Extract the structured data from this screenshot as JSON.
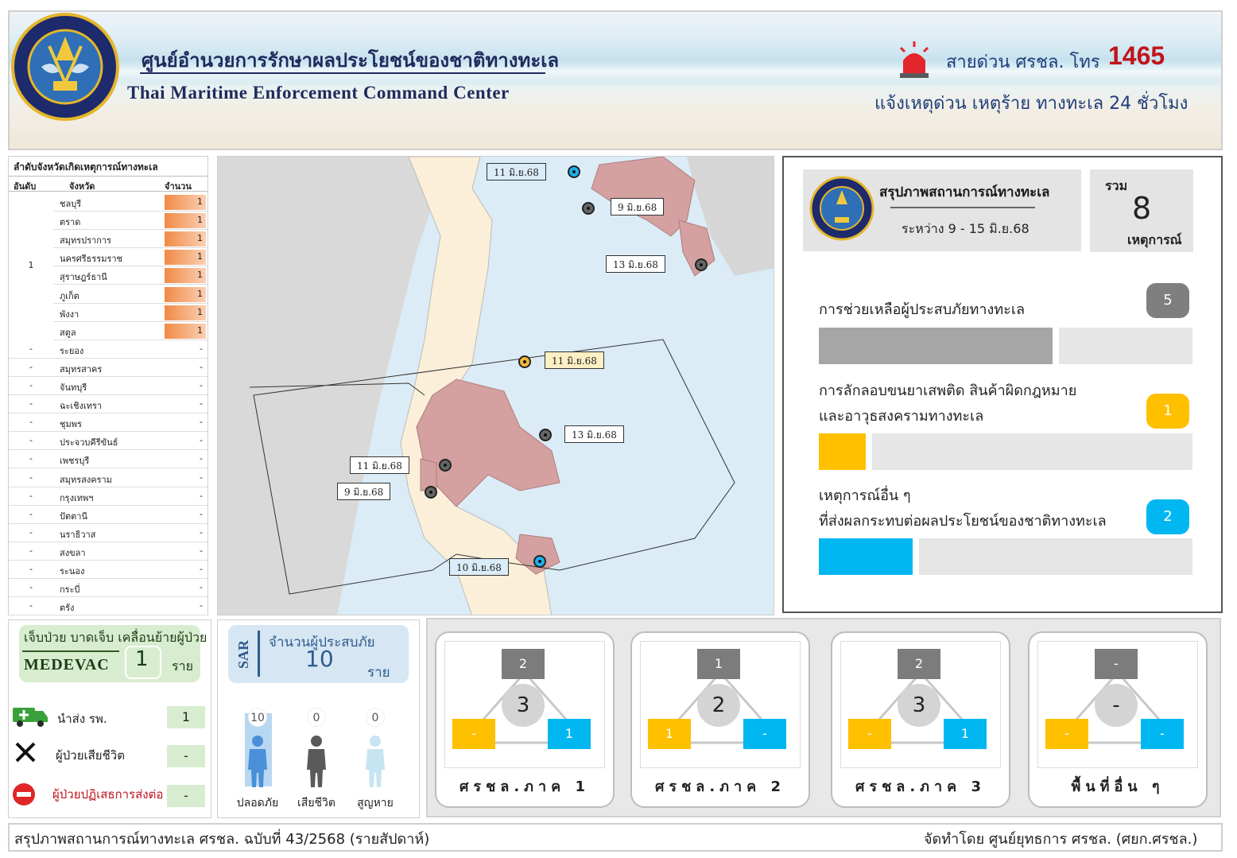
{
  "header": {
    "title_th": "ศูนย์อำนวยการรักษาผลประโยชน์ของชาติทางทะเล",
    "title_en": "Thai Maritime Enforcement Command Center",
    "hotline_label": "สายด่วน ศรชล. โทร",
    "hotline_number": "1465",
    "hotline_sub": "แจ้งเหตุด่วน เหตุร้าย ทางทะเล 24 ชั่วโมง"
  },
  "ranking": {
    "title": "ลำดับจังหวัดเกิดเหตุการณ์ทางทะเล",
    "col_rank": "อันดับ",
    "col_province": "จังหวัด",
    "col_count": "จำนวน",
    "top_rank": "1",
    "rows": [
      {
        "rank": "1",
        "province": "ชลบุรี",
        "count": "1"
      },
      {
        "rank": "1",
        "province": "ตราด",
        "count": "1"
      },
      {
        "rank": "1",
        "province": "สมุทรปราการ",
        "count": "1"
      },
      {
        "rank": "1",
        "province": "นครศรีธรรมราช",
        "count": "1"
      },
      {
        "rank": "1",
        "province": "สุราษฎร์ธานี",
        "count": "1"
      },
      {
        "rank": "1",
        "province": "ภูเก็ต",
        "count": "1"
      },
      {
        "rank": "1",
        "province": "พังงา",
        "count": "1"
      },
      {
        "rank": "1",
        "province": "สตูล",
        "count": "1"
      },
      {
        "rank": "-",
        "province": "ระยอง",
        "count": "-"
      },
      {
        "rank": "-",
        "province": "สมุทรสาคร",
        "count": "-"
      },
      {
        "rank": "-",
        "province": "จันทบุรี",
        "count": "-"
      },
      {
        "rank": "-",
        "province": "ฉะเชิงเทรา",
        "count": "-"
      },
      {
        "rank": "-",
        "province": "ชุมพร",
        "count": "-"
      },
      {
        "rank": "-",
        "province": "ประจวบคีรีขันธ์",
        "count": "-"
      },
      {
        "rank": "-",
        "province": "เพชรบุรี",
        "count": "-"
      },
      {
        "rank": "-",
        "province": "สมุทรสงคราม",
        "count": "-"
      },
      {
        "rank": "-",
        "province": "กรุงเทพฯ",
        "count": "-"
      },
      {
        "rank": "-",
        "province": "ปัตตานี",
        "count": "-"
      },
      {
        "rank": "-",
        "province": "นราธิวาส",
        "count": "-"
      },
      {
        "rank": "-",
        "province": "สงขลา",
        "count": "-"
      },
      {
        "rank": "-",
        "province": "ระนอง",
        "count": "-"
      },
      {
        "rank": "-",
        "province": "กระบี่",
        "count": "-"
      },
      {
        "rank": "-",
        "province": "ตรัง",
        "count": "-"
      }
    ]
  },
  "map": {
    "markers": [
      {
        "label": "11 มิ.ย.68",
        "type": "blue"
      },
      {
        "label": "9 มิ.ย.68",
        "type": "gray"
      },
      {
        "label": "13 มิ.ย.68",
        "type": "gray"
      },
      {
        "label": "11 มิ.ย.68",
        "type": "yellow"
      },
      {
        "label": "13 มิ.ย.68",
        "type": "gray"
      },
      {
        "label": "11 มิ.ย.68",
        "type": "gray"
      },
      {
        "label": "9 มิ.ย.68",
        "type": "gray"
      },
      {
        "label": "10 มิ.ย.68",
        "type": "blue"
      }
    ]
  },
  "summary": {
    "title": "สรุปภาพสถานการณ์ทางทะเล",
    "range": "ระหว่าง  9 - 15 มิ.ย.68",
    "total_label": "รวม",
    "total_value": "8",
    "total_unit": "เหตุการณ์",
    "categories": [
      {
        "line1": "การช่วยเหลือผู้ประสบภัยทางทะเล",
        "line2": "",
        "value": "5",
        "fraction": 0.625,
        "color": "#a6a6a6",
        "badge_color": "#7f7f7f"
      },
      {
        "line1": "การลักลอบขนยาเสพติด สินค้าผิดกฎหมาย",
        "line2": "และอาวุธสงครามทางทะเล",
        "value": "1",
        "fraction": 0.125,
        "color": "#ffc000",
        "badge_color": "#ffc000"
      },
      {
        "line1": "เหตุการณ์อื่น ๆ",
        "line2": "ที่ส่งผลกระทบต่อผลประโยชน์ของชาติทางทะเล",
        "value": "2",
        "fraction": 0.25,
        "color": "#00b7f1",
        "badge_color": "#00b7f1"
      }
    ]
  },
  "medevac": {
    "top": "เจ็บป่วย บาดเจ็บ เคลื่อนย้ายผู้ป่วย",
    "word": "MEDEVAC",
    "value": "1",
    "unit": "ราย",
    "rows": [
      {
        "label": "นำส่ง รพ.",
        "value": "1",
        "icon": "ambulance-icon"
      },
      {
        "label": "ผู้ป่วยเสียชีวิต",
        "value": "-",
        "icon": "x-icon"
      },
      {
        "label": "ผู้ป่วยปฏิเสธการส่งต่อ",
        "value": "-",
        "icon": "no-entry-icon"
      }
    ]
  },
  "sar": {
    "badge": "SAR",
    "label": "จำนวนผู้ประสบภัย",
    "value": "10",
    "unit": "ราย",
    "people": [
      {
        "label": "ปลอดภัย",
        "value": "10",
        "color": "#4a90d9"
      },
      {
        "label": "เสียชีวิต",
        "value": "0",
        "color": "#5a5a5a"
      },
      {
        "label": "สูญหาย",
        "value": "0",
        "color": "#c7e4f2"
      }
    ]
  },
  "regions": [
    {
      "name": "ศรชล.ภาค 1",
      "gray": "2",
      "total": "3",
      "yellow": "-",
      "blue": "1"
    },
    {
      "name": "ศรชล.ภาค 2",
      "gray": "1",
      "total": "2",
      "yellow": "1",
      "blue": "-"
    },
    {
      "name": "ศรชล.ภาค 3",
      "gray": "2",
      "total": "3",
      "yellow": "-",
      "blue": "1"
    },
    {
      "name": "พื้นที่อื่น ๆ",
      "gray": "-",
      "total": "-",
      "yellow": "-",
      "blue": "-"
    }
  ],
  "footer": {
    "left": "สรุปภาพสถานการณ์ทางทะเล ศรชล. ฉบับที่ 43/2568 (รายสัปดาห์)",
    "right": "จัดทำโดย ศูนย์ยุทธการ ศรชล. (ศยก.ศรชล.)"
  }
}
